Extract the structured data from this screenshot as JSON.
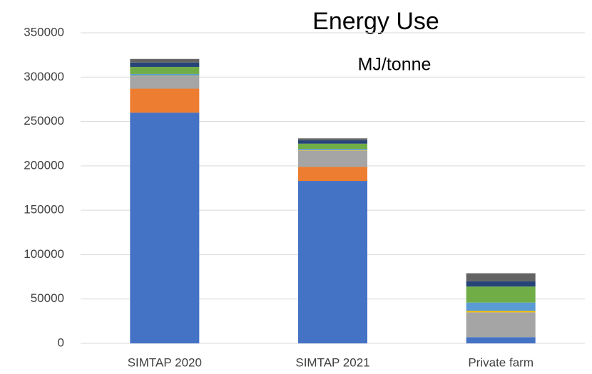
{
  "chart_data": {
    "type": "stacked_bar",
    "title": "Energy Use",
    "subtitle": "MJ/tonne",
    "categories": [
      "SIMTAP 2020",
      "SIMTAP 2021",
      "Private farm"
    ],
    "series": [
      {
        "color": "#4472c4",
        "values": [
          260000,
          183000,
          7000
        ]
      },
      {
        "color": "#ed7d31",
        "values": [
          27000,
          16000,
          0
        ]
      },
      {
        "color": "#a5a5a5",
        "values": [
          14000,
          18000,
          28000
        ]
      },
      {
        "color": "#ffc000",
        "values": [
          500,
          500,
          1500
        ]
      },
      {
        "color": "#5b9bd5",
        "values": [
          2000,
          1500,
          9500
        ]
      },
      {
        "color": "#70ad47",
        "values": [
          8000,
          6000,
          18000
        ]
      },
      {
        "color": "#264478",
        "values": [
          5000,
          4000,
          6000
        ]
      },
      {
        "color": "#636363",
        "values": [
          4000,
          2000,
          9000
        ]
      }
    ],
    "ylim": [
      0,
      350000
    ],
    "yticks": [
      0,
      50000,
      100000,
      150000,
      200000,
      250000,
      300000,
      350000
    ],
    "grid": true
  }
}
